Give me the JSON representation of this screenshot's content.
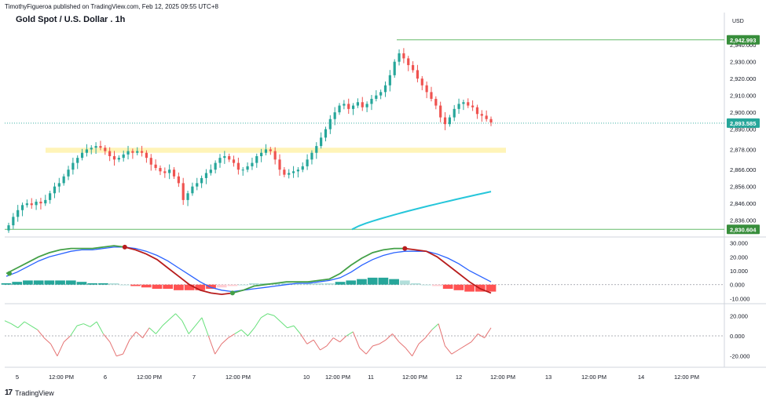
{
  "header": {
    "publisher": "TimothyFigueroa published on TradingView.com, Feb 12, 2025 09:55 UTC+8",
    "title": "Gold Spot / U.S. Dollar . 1h",
    "currency": "USD"
  },
  "footer": {
    "brand": "TradingView"
  },
  "colors": {
    "up": "#26a69a",
    "down": "#ef5350",
    "ma": "#26c6da",
    "zone": "#fff3b0",
    "line": "#66bb6a"
  },
  "chart_data": [
    {
      "type": "candlestick",
      "title": "Gold Spot / U.S. Dollar . 1h",
      "x_ticks": [
        "5",
        "12:00 PM",
        "6",
        "12:00 PM",
        "7",
        "12:00 PM",
        "10",
        "12:00 PM",
        "11",
        "12:00 PM",
        "12",
        "12:00 PM",
        "13",
        "12:00 PM",
        "14",
        "12:00 PM"
      ],
      "y_ticks": [
        "2,940.000",
        "2,930.000",
        "2,920.000",
        "2,910.000",
        "2,900.000",
        "2,890.000",
        "2,878.000",
        "2,866.000",
        "2,856.000",
        "2,846.000",
        "2,836.000"
      ],
      "price_tags": [
        {
          "label": "2,942.993",
          "value": 2942.993,
          "color": "#388e3c"
        },
        {
          "label": "2,893.585",
          "value": 2893.585,
          "color": "#26a69a"
        },
        {
          "label": "2,830.604",
          "value": 2830.604,
          "color": "#388e3c"
        }
      ],
      "candles_close": [
        2833,
        2838,
        2842,
        2845,
        2846,
        2845,
        2847,
        2846,
        2848,
        2852,
        2856,
        2858,
        2862,
        2866,
        2870,
        2873,
        2876,
        2878,
        2879,
        2880,
        2879,
        2877,
        2874,
        2872,
        2873,
        2875,
        2877,
        2876,
        2877,
        2876,
        2873,
        2869,
        2867,
        2865,
        2864,
        2866,
        2862,
        2858,
        2848,
        2852,
        2856,
        2858,
        2861,
        2864,
        2866,
        2870,
        2873,
        2874,
        2872,
        2870,
        2866,
        2866,
        2868,
        2870,
        2874,
        2876,
        2878,
        2877,
        2872,
        2866,
        2863,
        2864,
        2865,
        2866,
        2868,
        2872,
        2876,
        2880,
        2885,
        2890,
        2896,
        2900,
        2904,
        2905,
        2902,
        2904,
        2906,
        2903,
        2905,
        2908,
        2910,
        2912,
        2916,
        2922,
        2930,
        2935,
        2932,
        2928,
        2925,
        2920,
        2916,
        2912,
        2908,
        2904,
        2897,
        2893,
        2897,
        2902,
        2905,
        2906,
        2904,
        2903,
        2899,
        2898,
        2896,
        2894
      ],
      "ma_line": {
        "start": 2830.6,
        "end": 2853.0
      },
      "zone": {
        "low": 2876.0,
        "high": 2879.0
      },
      "ylim": [
        2827,
        2948
      ]
    },
    {
      "type": "line",
      "title": "",
      "y_ticks": [
        "30.000",
        "20.000",
        "10.000",
        "0.000",
        "-10.000"
      ],
      "ylim": [
        -12,
        32
      ],
      "series": [
        {
          "values": [
            8,
            12,
            16,
            20,
            23,
            25,
            26,
            26,
            26,
            27,
            28,
            27,
            25,
            22,
            18,
            12,
            6,
            0,
            -4,
            -6,
            -7,
            -6,
            -4,
            -1,
            0,
            1,
            2,
            2,
            2,
            3,
            4,
            8,
            14,
            19,
            23,
            25,
            26,
            26,
            25,
            24,
            20,
            14,
            8,
            2,
            -3,
            -6
          ]
        },
        {
          "values": [
            6,
            9,
            13,
            17,
            20,
            22,
            24,
            25,
            25,
            26,
            27,
            27,
            26,
            24,
            21,
            17,
            12,
            7,
            2,
            -2,
            -4,
            -5,
            -4,
            -3,
            -2,
            -1,
            0,
            1,
            1,
            2,
            3,
            5,
            9,
            14,
            18,
            21,
            23,
            24,
            24,
            24,
            22,
            19,
            15,
            10,
            6,
            2
          ]
        }
      ],
      "histogram": [
        1,
        2,
        3,
        3,
        3,
        3,
        3,
        2,
        1,
        1,
        1,
        0,
        -1,
        -2,
        -3,
        -3,
        -4,
        -4,
        -4,
        -3,
        -2,
        -1,
        0,
        1,
        1,
        1,
        1,
        1,
        1,
        1,
        1,
        2,
        3,
        4,
        5,
        5,
        4,
        3,
        1,
        0,
        -1,
        -3,
        -4,
        -5,
        -5,
        -5
      ]
    },
    {
      "type": "line",
      "title": "",
      "y_ticks": [
        "20.000",
        "0.000",
        "-20.000"
      ],
      "ylim": [
        -28,
        28
      ],
      "series": [
        {
          "values": [
            15,
            12,
            8,
            14,
            10,
            6,
            -2,
            -8,
            -20,
            -6,
            0,
            10,
            12,
            9,
            14,
            2,
            -6,
            -20,
            -18,
            -4,
            4,
            -2,
            8,
            2,
            10,
            16,
            22,
            15,
            2,
            10,
            18,
            0,
            -18,
            -8,
            -2,
            2,
            6,
            0,
            8,
            18,
            22,
            20,
            14,
            8,
            10,
            2,
            -8,
            -4,
            -14,
            -10,
            -2,
            -6,
            0,
            4,
            -12,
            -18,
            -10,
            -8,
            -4,
            2,
            -6,
            -12,
            -20,
            -8,
            -2,
            6,
            12,
            -10,
            -18,
            -14,
            -10,
            -6,
            2,
            -2,
            8
          ]
        }
      ]
    }
  ]
}
